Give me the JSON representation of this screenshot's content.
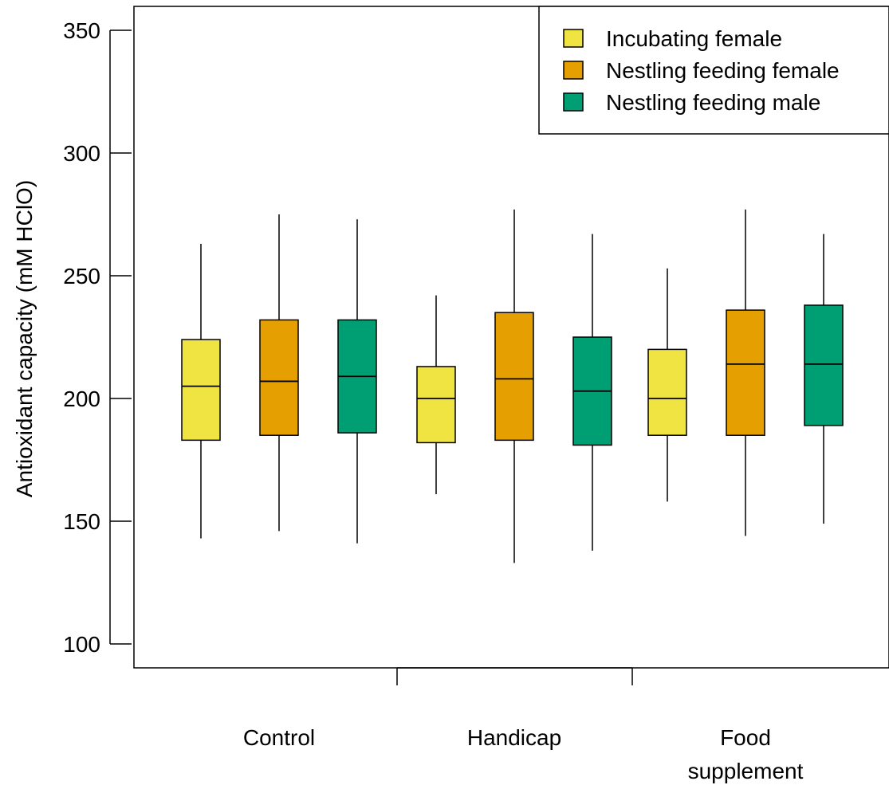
{
  "chart_data": {
    "type": "box",
    "title": "",
    "xlabel": "",
    "ylabel": "Antioxidant capacity (mM HClO)",
    "ylim": [
      90,
      360
    ],
    "yticks": [
      100,
      150,
      200,
      250,
      300,
      350
    ],
    "grid": false,
    "legend_position": "top-right",
    "categories": [
      "Control",
      "Handicap",
      "Food\nsupplement"
    ],
    "series": [
      {
        "name": "Incubating female",
        "color": "#F0E442",
        "boxes": [
          {
            "min": 143,
            "q1": 183,
            "median": 205,
            "q3": 224,
            "max": 263
          },
          {
            "min": 161,
            "q1": 182,
            "median": 200,
            "q3": 213,
            "max": 242
          },
          {
            "min": 158,
            "q1": 185,
            "median": 200,
            "q3": 220,
            "max": 253
          }
        ]
      },
      {
        "name": "Nestling feeding female",
        "color": "#E69F00",
        "boxes": [
          {
            "min": 146,
            "q1": 185,
            "median": 207,
            "q3": 232,
            "max": 275
          },
          {
            "min": 133,
            "q1": 183,
            "median": 208,
            "q3": 235,
            "max": 277
          },
          {
            "min": 144,
            "q1": 185,
            "median": 214,
            "q3": 236,
            "max": 277
          }
        ]
      },
      {
        "name": "Nestling feeding male",
        "color": "#009E73",
        "boxes": [
          {
            "min": 141,
            "q1": 186,
            "median": 209,
            "q3": 232,
            "max": 273
          },
          {
            "min": 138,
            "q1": 181,
            "median": 203,
            "q3": 225,
            "max": 267
          },
          {
            "min": 149,
            "q1": 189,
            "median": 214,
            "q3": 238,
            "max": 267
          }
        ]
      }
    ]
  }
}
